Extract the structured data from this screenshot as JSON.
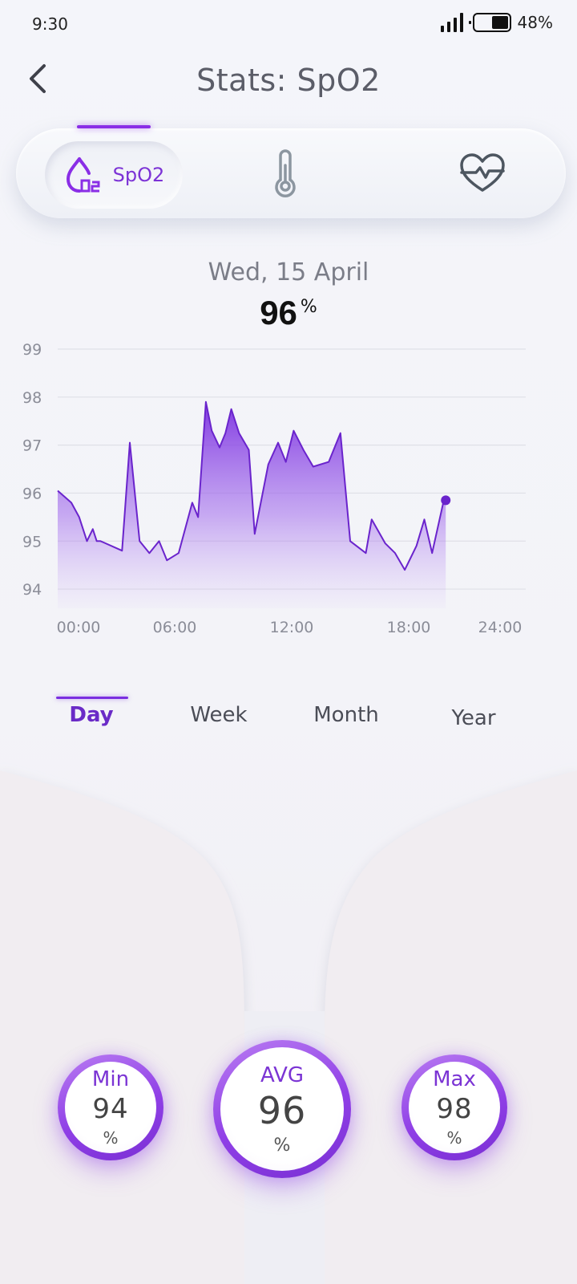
{
  "status_bar": {
    "time": "9:30",
    "battery_text": "48%",
    "battery_level": 0.48
  },
  "header": {
    "title": "Stats: SpO2",
    "back_icon": "chevron-left-icon"
  },
  "metric_tabs": [
    {
      "label": "SpO2",
      "icon": "oxygen-drop-icon",
      "active": true
    },
    {
      "label": "",
      "icon": "thermometer-icon",
      "active": false
    },
    {
      "label": "",
      "icon": "heart-rate-icon",
      "active": false
    }
  ],
  "reading": {
    "date": "Wed, 15 April",
    "value": "96",
    "unit": "%"
  },
  "range_tabs": [
    {
      "label": "Day",
      "active": true
    },
    {
      "label": "Week",
      "active": false
    },
    {
      "label": "Month",
      "active": false
    },
    {
      "label": "Year",
      "active": false
    }
  ],
  "chart_data": {
    "type": "area",
    "title": "",
    "xlabel": "",
    "ylabel": "",
    "x_ticks": [
      "00:00",
      "06:00",
      "12:00",
      "18:00",
      "24:00"
    ],
    "y_ticks": [
      94,
      95,
      96,
      97,
      98,
      99
    ],
    "xlim": [
      0,
      24
    ],
    "ylim": [
      93.6,
      99
    ],
    "grid": true,
    "color": "#7a2ee0",
    "current_point": {
      "x": 19.9,
      "y": 95.85
    },
    "series": [
      {
        "x": [
          0,
          0.7,
          1.1,
          1.5,
          1.8,
          2.0,
          2.2,
          3.3,
          3.7,
          4.2,
          4.7,
          5.2,
          5.6,
          6.2,
          6.9,
          7.2,
          7.6,
          7.9,
          8.3,
          8.6,
          8.9,
          9.3,
          9.8,
          10.1,
          10.8,
          11.3,
          11.7,
          12.1,
          12.6,
          13.1,
          13.9,
          14.5,
          15.0,
          15.8,
          16.1,
          16.8,
          17.3,
          17.8,
          18.4,
          18.8,
          19.2,
          19.8,
          19.9
        ],
        "values": [
          96.05,
          95.8,
          95.5,
          95.0,
          95.25,
          95.0,
          95.0,
          94.8,
          97.05,
          95.0,
          94.75,
          95.0,
          94.6,
          94.75,
          95.8,
          95.5,
          97.9,
          97.3,
          96.95,
          97.25,
          97.75,
          97.25,
          96.9,
          95.15,
          96.6,
          97.05,
          96.65,
          97.3,
          96.9,
          96.55,
          96.65,
          97.25,
          95.0,
          94.75,
          95.45,
          94.95,
          94.75,
          94.4,
          94.9,
          95.45,
          94.75,
          95.85,
          95.85
        ]
      }
    ]
  },
  "stats": {
    "min": {
      "label": "Min",
      "value": "94",
      "unit": "%"
    },
    "avg": {
      "label": "AVG",
      "value": "96",
      "unit": "%"
    },
    "max": {
      "label": "Max",
      "value": "98",
      "unit": "%"
    }
  }
}
